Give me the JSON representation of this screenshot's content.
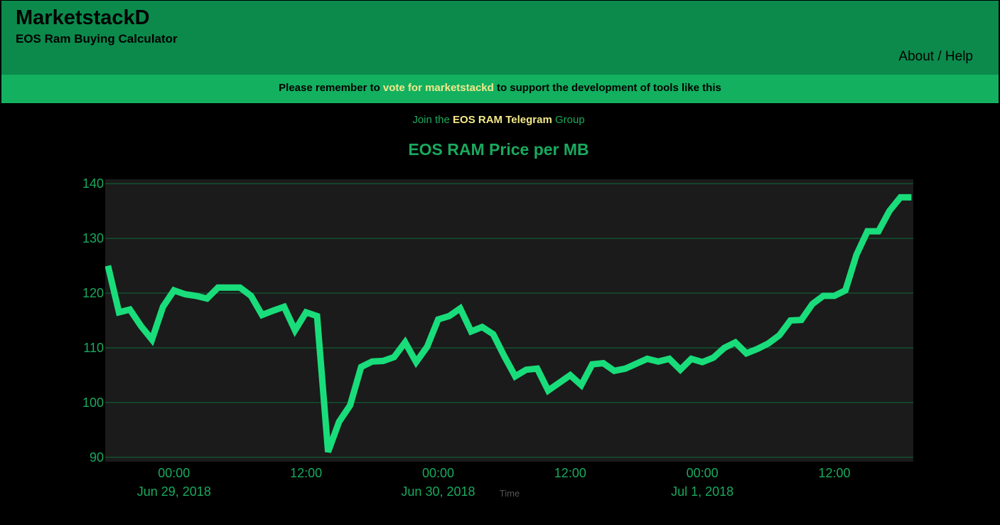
{
  "header": {
    "brand": "MarketstackD",
    "subtitle": "EOS Ram Buying Calculator",
    "nav_help": "About / Help"
  },
  "banner": {
    "prefix": "Please remember to ",
    "link": "vote for marketstackd",
    "suffix": " to support the development of tools like this"
  },
  "telegram": {
    "prefix": "Join the ",
    "link": "EOS RAM Telegram",
    "suffix": " Group"
  },
  "colors": {
    "header_bg": "#0b8a4c",
    "banner_bg": "#13b060",
    "accent_text": "#19a95d",
    "link": "#f3e98a",
    "line": "#19dd7a",
    "plot_bg": "#1b1b1b",
    "grid": "#0e6b3b"
  },
  "chart_data": {
    "type": "line",
    "title": "EOS RAM Price per MB",
    "xlabel": "Time",
    "ylabel": "",
    "ylim": [
      89.2,
      140.8
    ],
    "grid": true,
    "y_ticks": [
      90,
      100,
      110,
      120,
      130,
      140
    ],
    "x_ticks": [
      {
        "time": "2018-06-29T00:00",
        "label": "00:00",
        "sublabel": "Jun 29, 2018"
      },
      {
        "time": "2018-06-29T12:00",
        "label": "12:00",
        "sublabel": ""
      },
      {
        "time": "2018-06-30T00:00",
        "label": "00:00",
        "sublabel": "Jun 30, 2018"
      },
      {
        "time": "2018-06-30T12:00",
        "label": "12:00",
        "sublabel": ""
      },
      {
        "time": "2018-07-01T00:00",
        "label": "00:00",
        "sublabel": "Jul 1, 2018"
      },
      {
        "time": "2018-07-01T12:00",
        "label": "12:00",
        "sublabel": ""
      }
    ],
    "xlim": [
      "2018-06-28T17:45",
      "2018-07-01T19:10"
    ],
    "series": [
      {
        "x": [
          "2018-06-28T18:00",
          "2018-06-28T19:00",
          "2018-06-28T20:00",
          "2018-06-28T21:00",
          "2018-06-28T22:00",
          "2018-06-28T23:00",
          "2018-06-29T00:00",
          "2018-06-29T01:00",
          "2018-06-29T02:00",
          "2018-06-29T03:00",
          "2018-06-29T04:00",
          "2018-06-29T05:00",
          "2018-06-29T06:00",
          "2018-06-29T07:00",
          "2018-06-29T08:00",
          "2018-06-29T09:00",
          "2018-06-29T10:00",
          "2018-06-29T11:00",
          "2018-06-29T12:00",
          "2018-06-29T13:00",
          "2018-06-29T14:00",
          "2018-06-29T15:00",
          "2018-06-29T16:00",
          "2018-06-29T17:00",
          "2018-06-29T18:00",
          "2018-06-29T19:00",
          "2018-06-29T20:00",
          "2018-06-29T21:00",
          "2018-06-29T22:00",
          "2018-06-29T23:00",
          "2018-06-30T00:00",
          "2018-06-30T01:00",
          "2018-06-30T02:00",
          "2018-06-30T03:00",
          "2018-06-30T04:00",
          "2018-06-30T05:00",
          "2018-06-30T06:00",
          "2018-06-30T07:00",
          "2018-06-30T08:00",
          "2018-06-30T09:00",
          "2018-06-30T10:00",
          "2018-06-30T11:00",
          "2018-06-30T12:00",
          "2018-06-30T13:00",
          "2018-06-30T14:00",
          "2018-06-30T15:00",
          "2018-06-30T16:00",
          "2018-06-30T17:00",
          "2018-06-30T18:00",
          "2018-06-30T19:00",
          "2018-06-30T20:00",
          "2018-06-30T21:00",
          "2018-06-30T22:00",
          "2018-06-30T23:00",
          "2018-07-01T00:00",
          "2018-07-01T01:00",
          "2018-07-01T02:00",
          "2018-07-01T03:00",
          "2018-07-01T04:00",
          "2018-07-01T05:00",
          "2018-07-01T06:00",
          "2018-07-01T07:00",
          "2018-07-01T08:00",
          "2018-07-01T09:00",
          "2018-07-01T10:00",
          "2018-07-01T11:00",
          "2018-07-01T12:00",
          "2018-07-01T13:00",
          "2018-07-01T14:00",
          "2018-07-01T15:00",
          "2018-07-01T16:00",
          "2018-07-01T17:00",
          "2018-07-01T18:00",
          "2018-07-01T19:00"
        ],
        "y": [
          125,
          116.5,
          117,
          114,
          111.5,
          117.5,
          120.5,
          119.8,
          119.5,
          119,
          121,
          121,
          121,
          119.5,
          116,
          116.8,
          117.5,
          113.2,
          116.5,
          115.8,
          91,
          96.5,
          99.5,
          106.5,
          107.5,
          107.6,
          108.3,
          111,
          107.4,
          110.2,
          115.2,
          115.8,
          117.2,
          113,
          113.8,
          112.5,
          108.5,
          104.8,
          106,
          106.2,
          102.2,
          103.6,
          105,
          103.2,
          107,
          107.2,
          105.8,
          106.2,
          107.1,
          108,
          107.5,
          108,
          106,
          108,
          107.4,
          108.2,
          110,
          111,
          109,
          109.8,
          110.8,
          112.3,
          115,
          115.1,
          118,
          119.5,
          119.5,
          120.5,
          127,
          131.3,
          131.3,
          135,
          137.5,
          137.5
        ]
      }
    ]
  }
}
